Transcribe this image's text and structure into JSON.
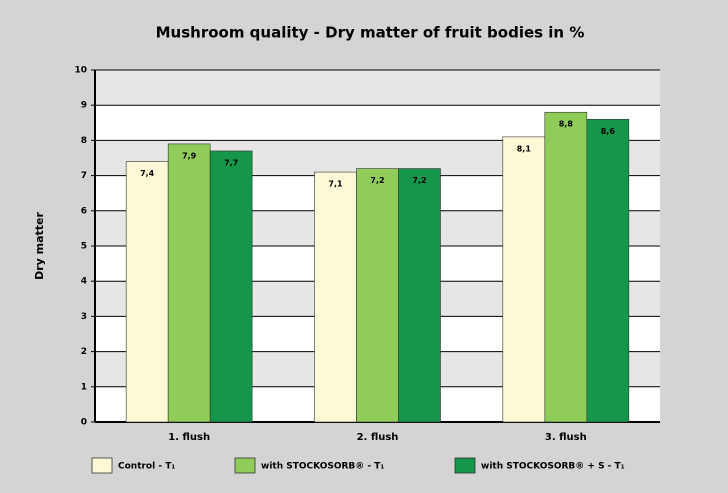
{
  "chart_data": {
    "type": "bar",
    "title": "Mushroom quality - Dry matter of fruit bodies in %",
    "y_label": "Dry matter",
    "categories": [
      "1. flush",
      "2. flush",
      "3. flush"
    ],
    "series": [
      {
        "name": "Control - T₁",
        "color": "#fdf9d6",
        "values": [
          7.4,
          7.1,
          8.1
        ],
        "value_labels": [
          "7,4",
          "7,1",
          "8,1"
        ]
      },
      {
        "name": "with STOCKOSORB® - T₁",
        "color": "#8fcc5a",
        "values": [
          7.9,
          7.2,
          8.8
        ],
        "value_labels": [
          "7,9",
          "7,2",
          "8,8"
        ]
      },
      {
        "name": "with STOCKOSORB® + S - T₁",
        "color": "#16964a",
        "values": [
          7.7,
          7.2,
          8.6
        ],
        "value_labels": [
          "7,7",
          "7,2",
          "8,6"
        ]
      }
    ],
    "ylim": [
      0,
      10
    ],
    "yticks": [
      0,
      1,
      2,
      3,
      4,
      5,
      6,
      7,
      8,
      9,
      10
    ],
    "grid": true
  }
}
